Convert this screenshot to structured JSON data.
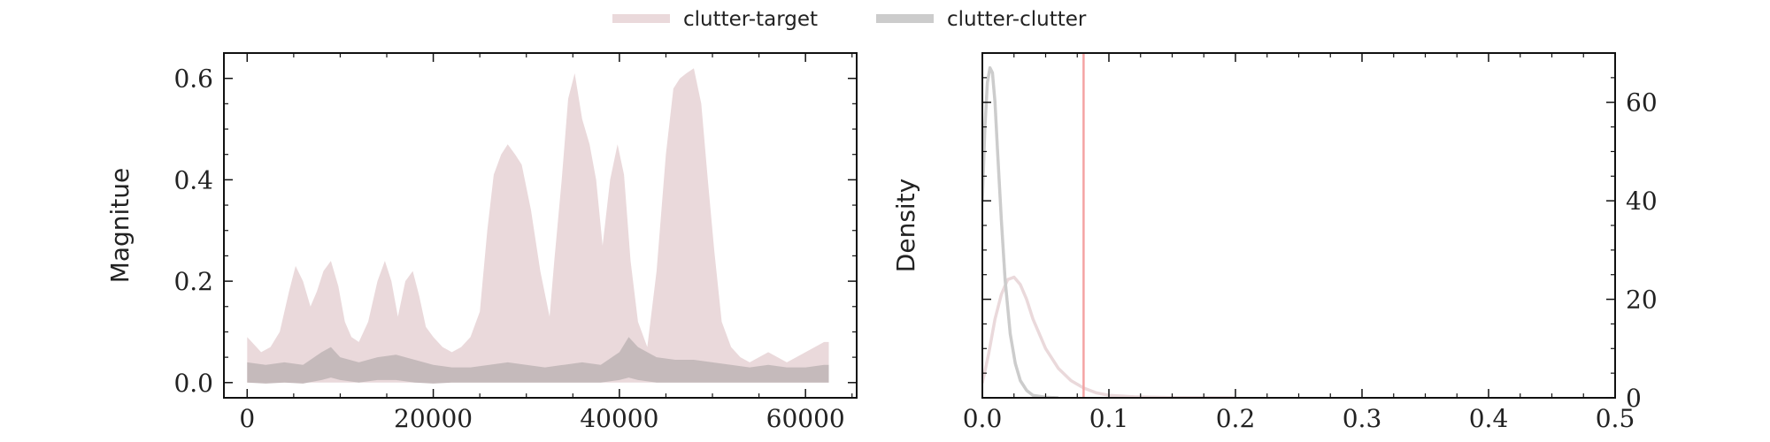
{
  "legend": {
    "items": [
      {
        "label": "clutter-target",
        "color": "#ead9db"
      },
      {
        "label": "clutter-clutter",
        "color": "#cccccc"
      }
    ]
  },
  "chart_data": [
    {
      "type": "area",
      "xlabel": "",
      "ylabel": "Magnitue",
      "xlim": [
        -2500,
        65500
      ],
      "ylim": [
        -0.03,
        0.65
      ],
      "xticks": [
        0,
        20000,
        40000,
        60000
      ],
      "xtick_labels": [
        "0",
        "20000",
        "40000",
        "60000"
      ],
      "yticks": [
        0.0,
        0.2,
        0.4,
        0.6
      ],
      "ytick_labels": [
        "0.0",
        "0.2",
        "0.4",
        "0.6"
      ],
      "grid": false,
      "series": [
        {
          "name": "clutter-target",
          "color": "#ead9db",
          "x": [
            0,
            500,
            1500,
            2500,
            3500,
            4500,
            5200,
            6000,
            6800,
            7500,
            8200,
            9000,
            9800,
            10500,
            11200,
            12000,
            13000,
            14000,
            14800,
            15500,
            16200,
            17000,
            17800,
            18500,
            19200,
            20000,
            21000,
            22000,
            23000,
            24000,
            25000,
            25800,
            26500,
            27300,
            28000,
            28800,
            29500,
            30500,
            31500,
            32500,
            33000,
            33800,
            34500,
            35200,
            36000,
            36800,
            37500,
            38200,
            39000,
            39800,
            40500,
            41200,
            42000,
            43000,
            44000,
            45000,
            45800,
            46500,
            47200,
            48000,
            48800,
            49500,
            50200,
            51000,
            52000,
            53000,
            54000,
            55000,
            56000,
            57000,
            58000,
            59000,
            60000,
            61000,
            62000,
            62500
          ],
          "upper": [
            0.09,
            0.08,
            0.06,
            0.07,
            0.1,
            0.18,
            0.23,
            0.2,
            0.15,
            0.18,
            0.22,
            0.24,
            0.19,
            0.12,
            0.09,
            0.08,
            0.12,
            0.2,
            0.24,
            0.2,
            0.13,
            0.2,
            0.22,
            0.17,
            0.11,
            0.09,
            0.07,
            0.06,
            0.07,
            0.09,
            0.14,
            0.3,
            0.41,
            0.45,
            0.47,
            0.45,
            0.43,
            0.34,
            0.22,
            0.13,
            0.24,
            0.4,
            0.56,
            0.61,
            0.52,
            0.47,
            0.4,
            0.27,
            0.4,
            0.47,
            0.41,
            0.24,
            0.12,
            0.07,
            0.22,
            0.45,
            0.58,
            0.6,
            0.61,
            0.62,
            0.55,
            0.4,
            0.26,
            0.12,
            0.07,
            0.05,
            0.04,
            0.05,
            0.06,
            0.05,
            0.04,
            0.05,
            0.06,
            0.07,
            0.08,
            0.08
          ],
          "lower": [
            0.0,
            0.0,
            0.0,
            0.0,
            0.0,
            0.0,
            0.0,
            0.0,
            0.0,
            0.0,
            0.0,
            0.0,
            0.0,
            0.0,
            0.0,
            0.0,
            0.0,
            0.0,
            0.0,
            0.0,
            0.0,
            0.0,
            0.0,
            0.0,
            0.0,
            0.0,
            0.0,
            0.0,
            0.0,
            0.0,
            0.0,
            0.0,
            0.0,
            0.0,
            0.0,
            0.0,
            0.0,
            0.0,
            0.0,
            0.0,
            0.0,
            0.0,
            0.0,
            0.0,
            0.0,
            0.0,
            0.0,
            0.0,
            0.0,
            0.0,
            0.0,
            0.0,
            0.0,
            0.0,
            0.0,
            0.0,
            0.0,
            0.0,
            0.0,
            0.0,
            0.0,
            0.0,
            0.0,
            0.0,
            0.0,
            0.0,
            0.0,
            0.0,
            0.0,
            0.0,
            0.0,
            0.0,
            0.0,
            0.0,
            0.0,
            0.0
          ]
        },
        {
          "name": "clutter-clutter",
          "color": "#c3b8b9",
          "x": [
            0,
            2000,
            4000,
            6000,
            8000,
            9000,
            10000,
            12000,
            14000,
            16000,
            18000,
            20000,
            22000,
            24000,
            26000,
            28000,
            30000,
            32000,
            34000,
            36000,
            38000,
            40000,
            41000,
            42000,
            44000,
            46000,
            48000,
            50000,
            52000,
            54000,
            56000,
            58000,
            60000,
            62000,
            62500
          ],
          "upper": [
            0.04,
            0.035,
            0.04,
            0.035,
            0.06,
            0.07,
            0.05,
            0.04,
            0.05,
            0.055,
            0.045,
            0.035,
            0.03,
            0.03,
            0.035,
            0.04,
            0.035,
            0.03,
            0.035,
            0.04,
            0.035,
            0.06,
            0.09,
            0.07,
            0.05,
            0.045,
            0.045,
            0.04,
            0.035,
            0.03,
            0.035,
            0.03,
            0.03,
            0.035,
            0.035
          ],
          "lower": [
            0.0,
            -0.002,
            0.0,
            -0.002,
            0.005,
            0.01,
            0.005,
            0.0,
            0.005,
            0.005,
            0.0,
            -0.002,
            0.0,
            0.0,
            0.0,
            0.0,
            0.0,
            0.0,
            0.0,
            0.0,
            0.0,
            0.005,
            0.01,
            0.005,
            0.0,
            0.0,
            0.0,
            0.0,
            0.0,
            0.0,
            0.0,
            0.0,
            0.0,
            0.0,
            0.0
          ]
        }
      ]
    },
    {
      "type": "line",
      "xlabel": "",
      "ylabel": "Density",
      "xlim": [
        0.0,
        0.5
      ],
      "ylim": [
        0,
        70
      ],
      "xticks": [
        0.0,
        0.1,
        0.2,
        0.3,
        0.4,
        0.5
      ],
      "xtick_labels": [
        "0.0",
        "0.1",
        "0.2",
        "0.3",
        "0.4",
        "0.5"
      ],
      "yticks": [
        0,
        20,
        40,
        60
      ],
      "ytick_labels": [
        "0",
        "20",
        "40",
        "60"
      ],
      "grid": false,
      "series": [
        {
          "name": "clutter-target",
          "color": "#ead9db",
          "x": [
            0.0,
            0.005,
            0.01,
            0.015,
            0.02,
            0.025,
            0.03,
            0.035,
            0.04,
            0.05,
            0.06,
            0.07,
            0.08,
            0.09,
            0.1,
            0.12,
            0.15,
            0.2
          ],
          "y": [
            3,
            9,
            16,
            21,
            24,
            24.5,
            23,
            20,
            16,
            10,
            6,
            3.5,
            2,
            1,
            0.5,
            0.2,
            0.05,
            0
          ]
        },
        {
          "name": "clutter-clutter",
          "color": "#cccccc",
          "x": [
            0.0,
            0.002,
            0.004,
            0.006,
            0.008,
            0.01,
            0.012,
            0.015,
            0.018,
            0.022,
            0.026,
            0.03,
            0.035,
            0.04,
            0.05,
            0.06
          ],
          "y": [
            40,
            55,
            64,
            67,
            66,
            60,
            50,
            36,
            24,
            13,
            7,
            3.5,
            1.5,
            0.5,
            0.1,
            0
          ]
        }
      ],
      "vline": {
        "x": 0.08,
        "color": "#f4a3a3"
      }
    }
  ]
}
